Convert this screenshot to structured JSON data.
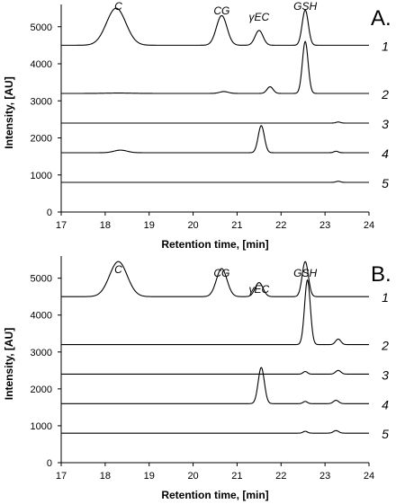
{
  "chart_data": [
    {
      "type": "line",
      "panel_label": "A.",
      "xlabel": "Retention time, [min]",
      "ylabel": "Intensity, [AU]",
      "xlim": [
        17,
        24
      ],
      "ylim": [
        0,
        5600
      ],
      "x_ticks": [
        17,
        18,
        19,
        20,
        21,
        22,
        23,
        24
      ],
      "y_ticks": [
        0,
        1000,
        2000,
        3000,
        4000,
        5000
      ],
      "peak_labels": [
        {
          "text": "C",
          "x": 18.3
        },
        {
          "text": "CG",
          "x": 20.65
        },
        {
          "text": "γEC",
          "x": 21.5
        },
        {
          "text": "GSH",
          "x": 22.55
        }
      ],
      "series": [
        {
          "name": "1",
          "baseline": 4500,
          "peaks": [
            {
              "x": 18.25,
              "h": 1000,
              "w": 0.22
            },
            {
              "x": 20.65,
              "h": 800,
              "w": 0.12
            },
            {
              "x": 21.5,
              "h": 400,
              "w": 0.09
            },
            {
              "x": 22.55,
              "h": 950,
              "w": 0.07
            }
          ]
        },
        {
          "name": "2",
          "baseline": 3200,
          "peaks": [
            {
              "x": 18.3,
              "h": 10,
              "w": 0.3
            },
            {
              "x": 20.7,
              "h": 50,
              "w": 0.1
            },
            {
              "x": 21.75,
              "h": 180,
              "w": 0.07
            },
            {
              "x": 22.55,
              "h": 1400,
              "w": 0.065
            }
          ]
        },
        {
          "name": "3",
          "baseline": 2400,
          "peaks": [
            {
              "x": 23.3,
              "h": 30,
              "w": 0.05
            }
          ]
        },
        {
          "name": "4",
          "baseline": 1600,
          "peaks": [
            {
              "x": 18.35,
              "h": 70,
              "w": 0.15
            },
            {
              "x": 21.55,
              "h": 730,
              "w": 0.07
            },
            {
              "x": 23.25,
              "h": 40,
              "w": 0.05
            }
          ]
        },
        {
          "name": "5",
          "baseline": 800,
          "peaks": [
            {
              "x": 23.3,
              "h": 30,
              "w": 0.05
            }
          ]
        }
      ]
    },
    {
      "type": "line",
      "panel_label": "B.",
      "xlabel": "Retention time, [min]",
      "ylabel": "Intensity, [AU]",
      "xlim": [
        17,
        24
      ],
      "ylim": [
        0,
        5600
      ],
      "x_ticks": [
        17,
        18,
        19,
        20,
        21,
        22,
        23,
        24
      ],
      "y_ticks": [
        0,
        1000,
        2000,
        3000,
        4000,
        5000
      ],
      "peak_labels": [
        {
          "text": "C",
          "x": 18.3
        },
        {
          "text": "CG",
          "x": 20.65
        },
        {
          "text": "γEC",
          "x": 21.5
        },
        {
          "text": "GSH",
          "x": 22.55
        }
      ],
      "series": [
        {
          "name": "1",
          "baseline": 4500,
          "peaks": [
            {
              "x": 18.3,
              "h": 950,
              "w": 0.2
            },
            {
              "x": 20.65,
              "h": 760,
              "w": 0.12
            },
            {
              "x": 21.5,
              "h": 380,
              "w": 0.09
            },
            {
              "x": 22.55,
              "h": 950,
              "w": 0.07
            }
          ]
        },
        {
          "name": "2",
          "baseline": 3200,
          "peaks": [
            {
              "x": 22.6,
              "h": 1750,
              "w": 0.065
            },
            {
              "x": 23.3,
              "h": 150,
              "w": 0.06
            }
          ]
        },
        {
          "name": "3",
          "baseline": 2400,
          "peaks": [
            {
              "x": 22.55,
              "h": 70,
              "w": 0.05
            },
            {
              "x": 23.3,
              "h": 100,
              "w": 0.06
            }
          ]
        },
        {
          "name": "4",
          "baseline": 1600,
          "peaks": [
            {
              "x": 21.55,
              "h": 980,
              "w": 0.07
            },
            {
              "x": 22.55,
              "h": 60,
              "w": 0.05
            },
            {
              "x": 23.25,
              "h": 90,
              "w": 0.06
            }
          ]
        },
        {
          "name": "5",
          "baseline": 800,
          "peaks": [
            {
              "x": 22.55,
              "h": 50,
              "w": 0.05
            },
            {
              "x": 23.25,
              "h": 70,
              "w": 0.06
            }
          ]
        }
      ]
    }
  ]
}
